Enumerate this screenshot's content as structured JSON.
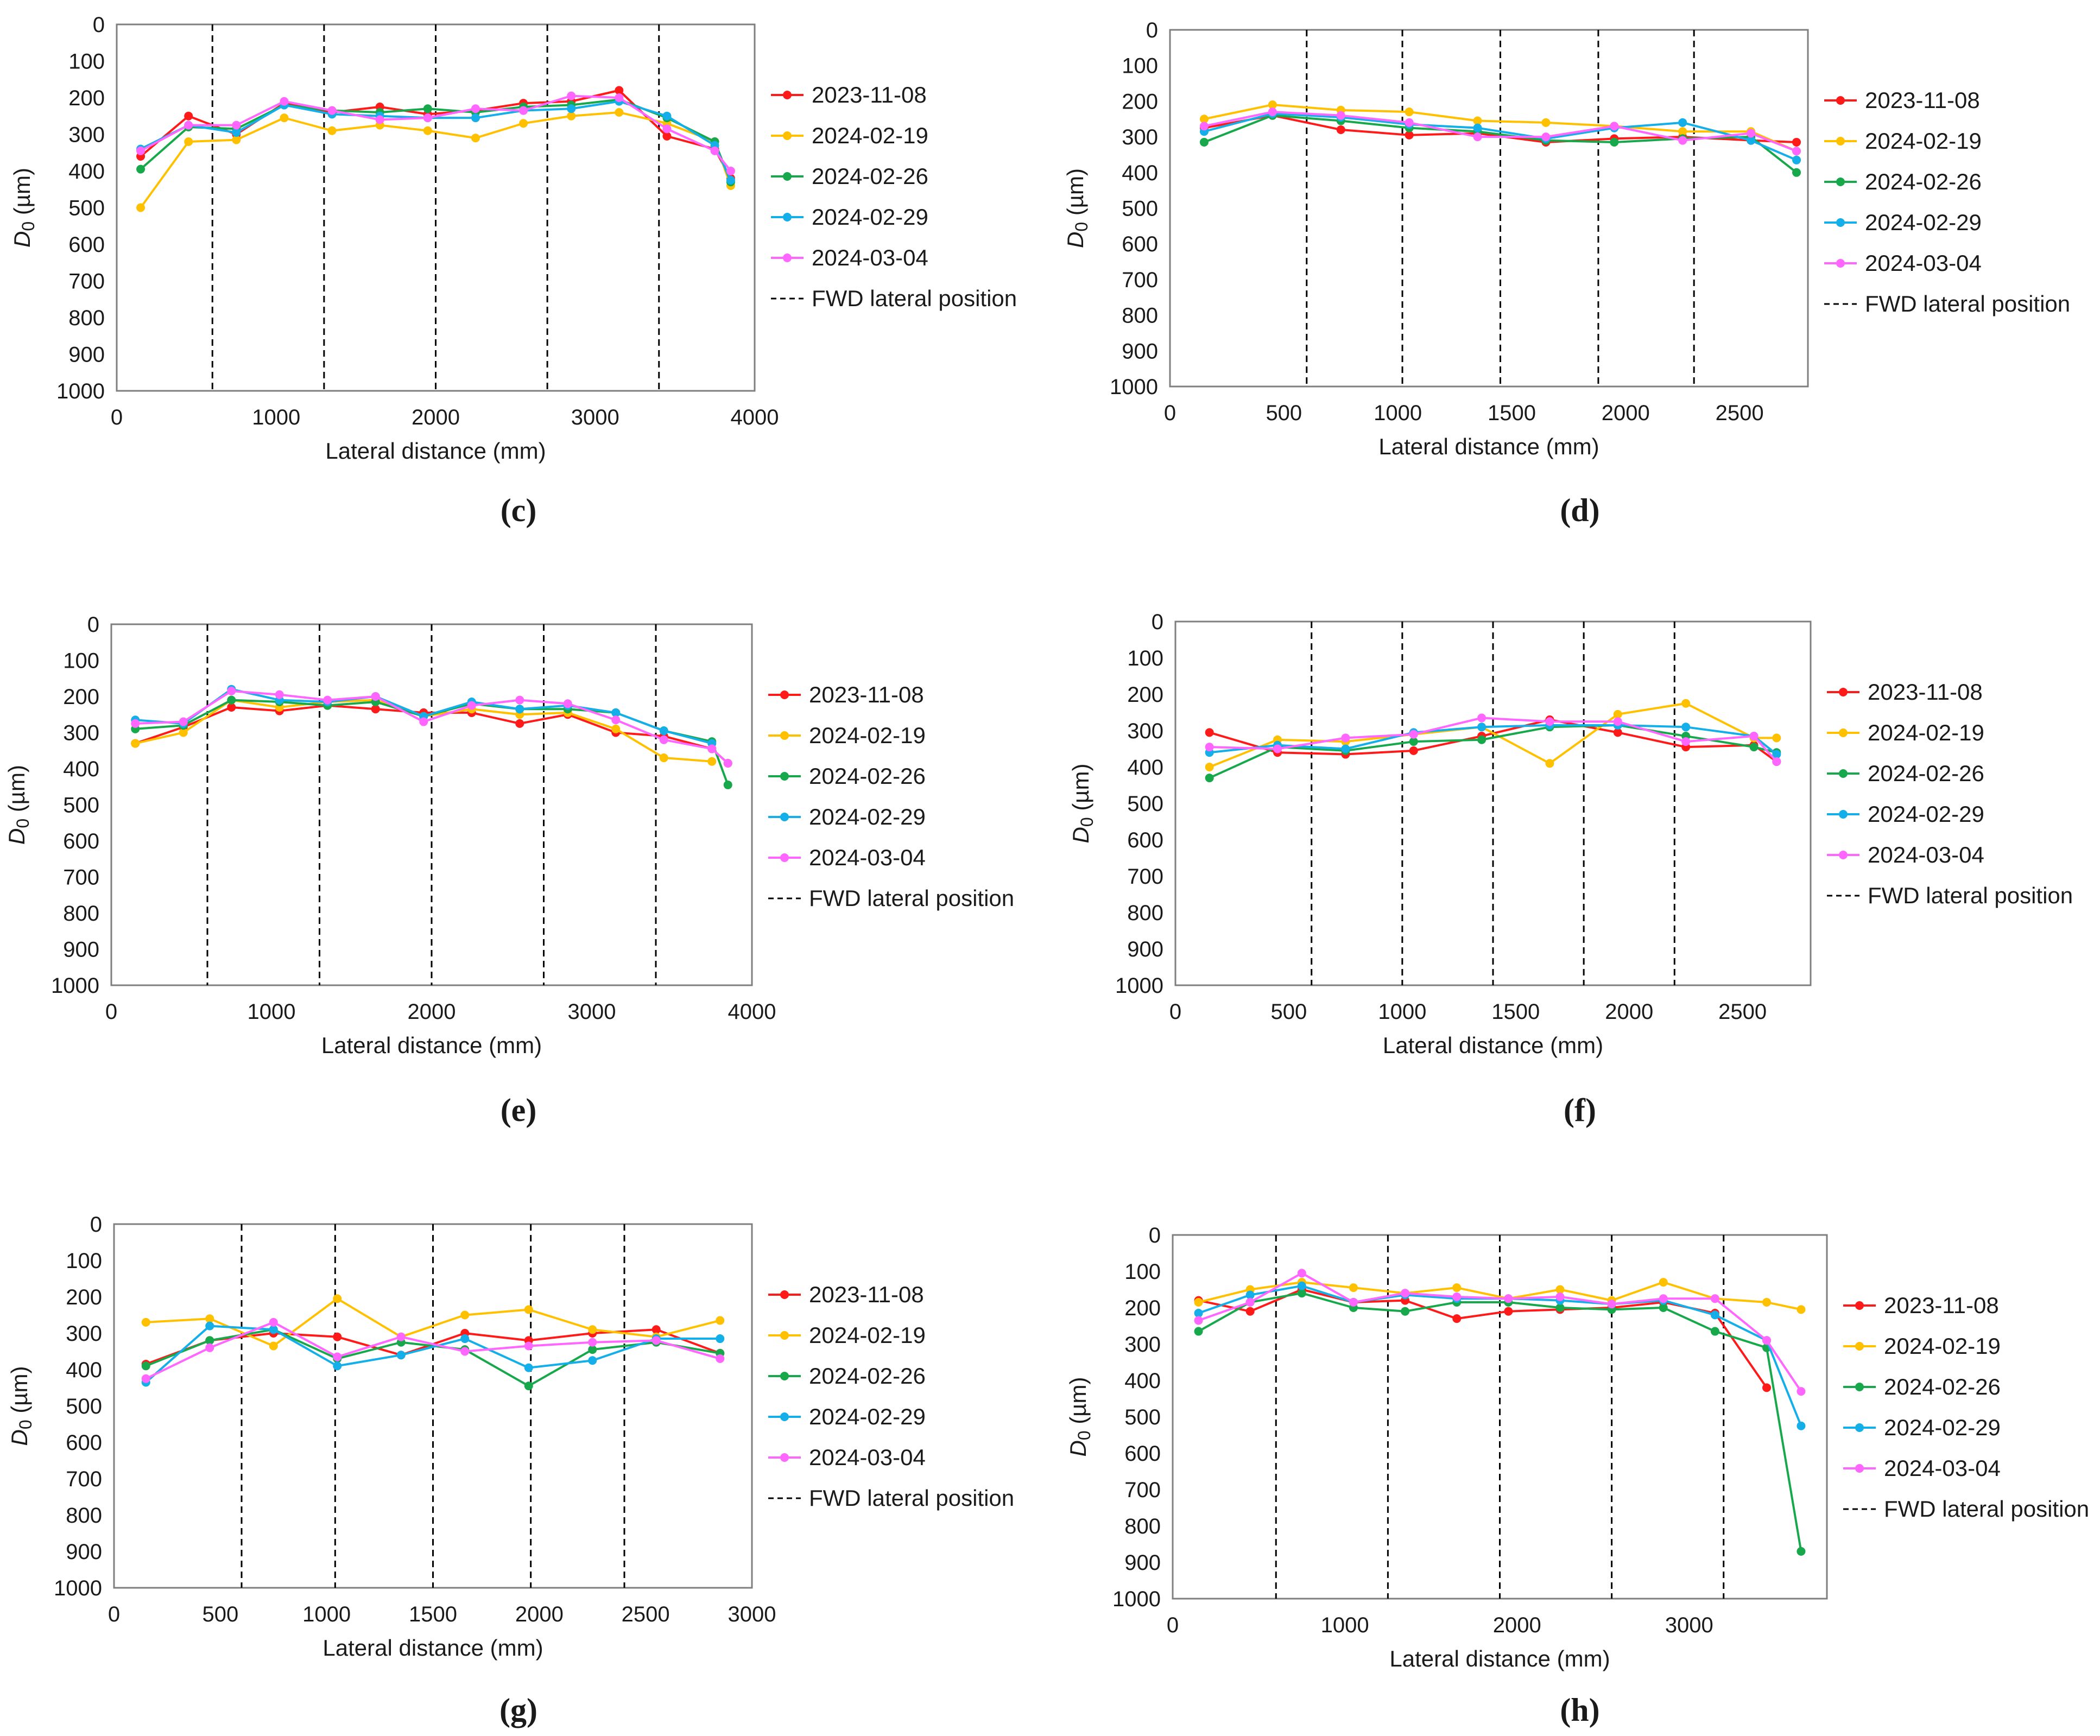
{
  "figure": {
    "series_names": [
      "2023-11-08",
      "2024-02-19",
      "2024-02-26",
      "2024-02-29",
      "2024-03-04"
    ],
    "series_colors": [
      "#ff1a1a",
      "#ffc000",
      "#17a84b",
      "#14aee8",
      "#ff66ff"
    ],
    "fwd_legend_label": "FWD lateral position"
  },
  "chart_data": [
    {
      "type": "line",
      "panel_label": "(c)",
      "xlabel": "Lateral distance (mm)",
      "ylabel": "D0 (µm)",
      "xlim": [
        0,
        4000
      ],
      "ylim": [
        0,
        1000
      ],
      "y_inverted": true,
      "xticks": [
        0,
        1000,
        2000,
        3000,
        4000
      ],
      "yticks": [
        0,
        100,
        200,
        300,
        400,
        500,
        600,
        700,
        800,
        900,
        1000
      ],
      "fwd_positions": [
        600,
        1300,
        2000,
        2700,
        3400
      ],
      "x": [
        150,
        450,
        750,
        1050,
        1350,
        1650,
        1950,
        2250,
        2550,
        2850,
        3150,
        3450,
        3750,
        3850
      ],
      "series": [
        {
          "name": "2023-11-08",
          "values": [
            360,
            250,
            300,
            215,
            240,
            225,
            245,
            235,
            215,
            210,
            180,
            305,
            340,
            420
          ]
        },
        {
          "name": "2024-02-19",
          "values": [
            500,
            320,
            315,
            255,
            290,
            275,
            290,
            310,
            270,
            250,
            240,
            270,
            320,
            440
          ]
        },
        {
          "name": "2024-02-26",
          "values": [
            395,
            280,
            285,
            220,
            235,
            240,
            230,
            240,
            225,
            220,
            205,
            255,
            320,
            430
          ]
        },
        {
          "name": "2024-02-29",
          "values": [
            340,
            275,
            295,
            220,
            245,
            250,
            255,
            255,
            235,
            230,
            210,
            250,
            330,
            425
          ]
        },
        {
          "name": "2024-03-04",
          "values": [
            345,
            275,
            275,
            210,
            235,
            260,
            255,
            230,
            235,
            195,
            200,
            285,
            345,
            400
          ]
        }
      ]
    },
    {
      "type": "line",
      "panel_label": "(d)",
      "xlabel": "Lateral distance (mm)",
      "ylabel": "D0 (µm)",
      "xlim": [
        0,
        2800
      ],
      "ylim": [
        0,
        1000
      ],
      "y_inverted": true,
      "xticks": [
        0,
        500,
        1000,
        1500,
        2000,
        2500
      ],
      "yticks": [
        0,
        100,
        200,
        300,
        400,
        500,
        600,
        700,
        800,
        900,
        1000
      ],
      "fwd_positions": [
        600,
        1020,
        1450,
        1880,
        2300
      ],
      "x": [
        150,
        450,
        750,
        1050,
        1350,
        1650,
        1950,
        2250,
        2550,
        2750
      ],
      "series": [
        {
          "name": "2023-11-08",
          "values": [
            275,
            240,
            280,
            295,
            290,
            315,
            305,
            300,
            310,
            315
          ]
        },
        {
          "name": "2024-02-19",
          "values": [
            250,
            210,
            225,
            230,
            255,
            260,
            270,
            285,
            285,
            340
          ]
        },
        {
          "name": "2024-02-26",
          "values": [
            315,
            240,
            255,
            275,
            285,
            310,
            315,
            305,
            300,
            400
          ]
        },
        {
          "name": "2024-02-29",
          "values": [
            285,
            235,
            245,
            265,
            275,
            305,
            275,
            260,
            310,
            365
          ]
        },
        {
          "name": "2024-03-04",
          "values": [
            270,
            230,
            240,
            260,
            300,
            300,
            270,
            310,
            290,
            340
          ]
        }
      ]
    },
    {
      "type": "line",
      "panel_label": "(e)",
      "xlabel": "Lateral distance (mm)",
      "ylabel": "D0 (µm)",
      "xlim": [
        0,
        4000
      ],
      "ylim": [
        0,
        1000
      ],
      "y_inverted": true,
      "xticks": [
        0,
        1000,
        2000,
        3000,
        4000
      ],
      "yticks": [
        0,
        100,
        200,
        300,
        400,
        500,
        600,
        700,
        800,
        900,
        1000
      ],
      "fwd_positions": [
        600,
        1300,
        2000,
        2700,
        3400
      ],
      "x": [
        150,
        450,
        750,
        1050,
        1350,
        1650,
        1950,
        2250,
        2550,
        2850,
        3150,
        3450,
        3750,
        3850
      ],
      "series": [
        {
          "name": "2023-11-08",
          "values": [
            330,
            285,
            230,
            240,
            225,
            235,
            245,
            245,
            275,
            250,
            300,
            310,
            345,
            385
          ]
        },
        {
          "name": "2024-02-19",
          "values": [
            330,
            300,
            210,
            230,
            215,
            210,
            255,
            235,
            250,
            245,
            290,
            370,
            380,
            null
          ]
        },
        {
          "name": "2024-02-26",
          "values": [
            290,
            280,
            210,
            215,
            225,
            215,
            255,
            220,
            235,
            235,
            245,
            295,
            325,
            445
          ]
        },
        {
          "name": "2024-02-29",
          "values": [
            265,
            275,
            180,
            210,
            215,
            200,
            255,
            215,
            235,
            225,
            245,
            295,
            330,
            null
          ]
        },
        {
          "name": "2024-03-04",
          "values": [
            275,
            270,
            185,
            195,
            210,
            200,
            270,
            225,
            210,
            220,
            265,
            320,
            345,
            385
          ]
        }
      ]
    },
    {
      "type": "line",
      "panel_label": "(f)",
      "xlabel": "Lateral distance (mm)",
      "ylabel": "D0 (µm)",
      "xlim": [
        0,
        2800
      ],
      "ylim": [
        0,
        1000
      ],
      "y_inverted": true,
      "xticks": [
        0,
        500,
        1000,
        1500,
        2000,
        2500
      ],
      "yticks": [
        0,
        100,
        200,
        300,
        400,
        500,
        600,
        700,
        800,
        900,
        1000
      ],
      "fwd_positions": [
        600,
        1000,
        1400,
        1800,
        2200
      ],
      "x": [
        150,
        450,
        750,
        1050,
        1350,
        1650,
        1950,
        2250,
        2550,
        2650
      ],
      "series": [
        {
          "name": "2023-11-08",
          "values": [
            305,
            360,
            365,
            355,
            315,
            270,
            305,
            345,
            340,
            385
          ]
        },
        {
          "name": "2024-02-19",
          "values": [
            400,
            325,
            330,
            310,
            290,
            390,
            255,
            225,
            320,
            320
          ]
        },
        {
          "name": "2024-02-26",
          "values": [
            430,
            345,
            355,
            330,
            325,
            290,
            285,
            315,
            345,
            360
          ]
        },
        {
          "name": "2024-02-29",
          "values": [
            360,
            340,
            350,
            305,
            290,
            285,
            285,
            290,
            315,
            365
          ]
        },
        {
          "name": "2024-03-04",
          "values": [
            345,
            350,
            320,
            310,
            265,
            275,
            275,
            330,
            315,
            385
          ]
        }
      ]
    },
    {
      "type": "line",
      "panel_label": "(g)",
      "xlabel": "Lateral distance (mm)",
      "ylabel": "D0 (µm)",
      "xlim": [
        0,
        3000
      ],
      "ylim": [
        0,
        1000
      ],
      "y_inverted": true,
      "xticks": [
        0,
        500,
        1000,
        1500,
        2000,
        2500,
        3000
      ],
      "yticks": [
        0,
        100,
        200,
        300,
        400,
        500,
        600,
        700,
        800,
        900,
        1000
      ],
      "fwd_positions": [
        600,
        1040,
        1500,
        1960,
        2400
      ],
      "x": [
        150,
        450,
        750,
        1050,
        1350,
        1650,
        1950,
        2250,
        2550,
        2850
      ],
      "series": [
        {
          "name": "2023-11-08",
          "values": [
            385,
            320,
            300,
            310,
            360,
            300,
            320,
            300,
            290,
            355
          ]
        },
        {
          "name": "2024-02-19",
          "values": [
            270,
            260,
            335,
            205,
            310,
            250,
            235,
            290,
            310,
            265
          ]
        },
        {
          "name": "2024-02-26",
          "values": [
            390,
            320,
            290,
            370,
            325,
            345,
            445,
            345,
            325,
            355
          ]
        },
        {
          "name": "2024-02-29",
          "values": [
            435,
            280,
            290,
            390,
            360,
            315,
            395,
            375,
            315,
            315
          ]
        },
        {
          "name": "2024-03-04",
          "values": [
            425,
            340,
            270,
            365,
            310,
            350,
            335,
            325,
            320,
            370
          ]
        }
      ]
    },
    {
      "type": "line",
      "panel_label": "(h)",
      "xlabel": "Lateral distance (mm)",
      "ylabel": "D0 (µm)",
      "xlim": [
        0,
        3800
      ],
      "ylim": [
        0,
        1000
      ],
      "y_inverted": true,
      "xticks": [
        0,
        1000,
        2000,
        3000
      ],
      "yticks": [
        0,
        100,
        200,
        300,
        400,
        500,
        600,
        700,
        800,
        900,
        1000
      ],
      "fwd_positions": [
        600,
        1250,
        1900,
        2550,
        3200
      ],
      "x": [
        150,
        450,
        750,
        1050,
        1350,
        1650,
        1950,
        2250,
        2550,
        2850,
        3150,
        3450,
        3650
      ],
      "series": [
        {
          "name": "2023-11-08",
          "values": [
            180,
            210,
            150,
            185,
            180,
            230,
            210,
            205,
            200,
            185,
            215,
            420,
            null
          ]
        },
        {
          "name": "2024-02-19",
          "values": [
            185,
            150,
            130,
            145,
            160,
            145,
            175,
            150,
            180,
            130,
            175,
            185,
            205
          ]
        },
        {
          "name": "2024-02-26",
          "values": [
            265,
            185,
            160,
            200,
            210,
            185,
            185,
            200,
            205,
            200,
            265,
            310,
            870
          ]
        },
        {
          "name": "2024-02-29",
          "values": [
            215,
            165,
            140,
            185,
            165,
            175,
            175,
            180,
            190,
            180,
            220,
            290,
            525
          ]
        },
        {
          "name": "2024-03-04",
          "values": [
            235,
            185,
            105,
            185,
            160,
            170,
            175,
            170,
            190,
            175,
            175,
            290,
            430
          ]
        }
      ]
    }
  ]
}
